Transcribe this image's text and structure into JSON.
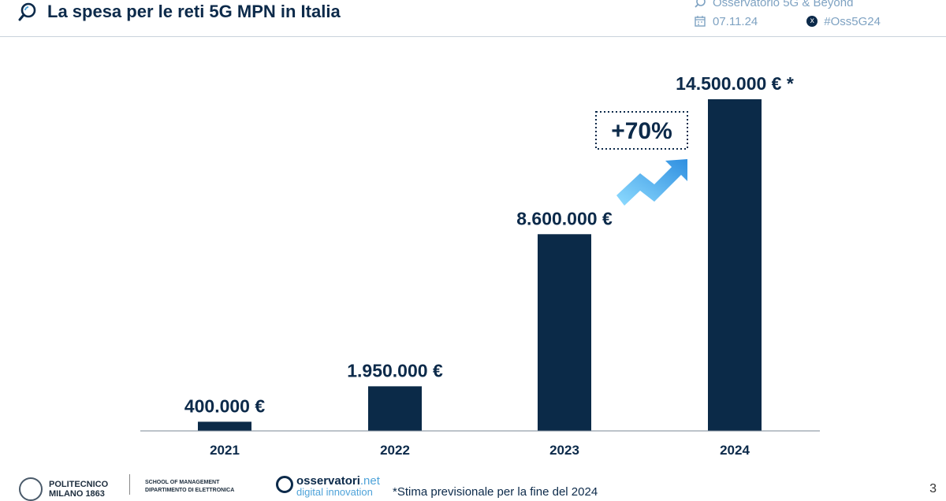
{
  "header": {
    "title": "La spesa per le reti 5G MPN in Italia",
    "meta_top": "Osservatorio 5G & Beyond",
    "date": "07.11.24",
    "hashtag": "#Oss5G24"
  },
  "colors": {
    "navy": "#0c2a4a",
    "bar": "#0b2a48",
    "accent_light": "#7fd3ff",
    "accent_dark": "#2f8fe0"
  },
  "chart_data": {
    "type": "bar",
    "categories": [
      "2021",
      "2022",
      "2023",
      "2024"
    ],
    "values": [
      400000,
      1950000,
      8600000,
      14500000
    ],
    "value_labels": [
      "400.000 €",
      "1.950.000 €",
      "8.600.000 €",
      "14.500.000 € *"
    ],
    "annotation": "+70%",
    "title": "",
    "xlabel": "",
    "ylabel": "",
    "ylim": [
      0,
      14500000
    ],
    "grid": false,
    "legend": "none"
  },
  "footer": {
    "poli_name": "POLITECNICO",
    "poli_city": "MILANO 1863",
    "school_line1": "SCHOOL OF MANAGEMENT",
    "school_line2": "DIPARTIMENTO DI ELETTRONICA",
    "oss_brand_dark": "osservatori",
    "oss_brand_light": ".net",
    "oss_sub": "digital innovation",
    "footnote": "*Stima previsionale per la fine del 2024",
    "page_number": "3"
  }
}
